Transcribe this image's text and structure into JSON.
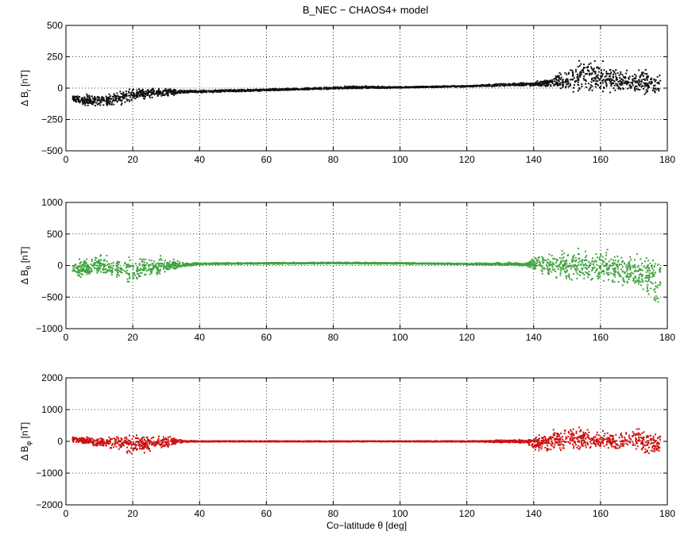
{
  "chart_data": {
    "type": "scatter",
    "title": "B_NEC − CHAOS4+ model",
    "grid": true,
    "panels": [
      {
        "name": "delta-br",
        "ylabel_prefix": "Δ B",
        "ylabel_sub": "r",
        "ylabel_suffix": " [nT]",
        "color": "#111111",
        "xlim": [
          0,
          180
        ],
        "ylim": [
          -500,
          500
        ],
        "xticks": [
          0,
          20,
          40,
          60,
          80,
          100,
          120,
          140,
          160,
          180
        ],
        "yticks": [
          -500,
          -250,
          0,
          250,
          500
        ],
        "xtick_labels": [
          "0",
          "20",
          "40",
          "60",
          "80",
          "100",
          "120",
          "140",
          "160",
          "180"
        ],
        "ytick_labels": [
          "−500",
          "−250",
          "0",
          "250",
          "500"
        ],
        "envelope": [
          [
            2,
            -110,
            -50
          ],
          [
            5,
            -150,
            -40
          ],
          [
            10,
            -180,
            -30
          ],
          [
            15,
            -170,
            -15
          ],
          [
            20,
            -110,
            10
          ],
          [
            25,
            -90,
            15
          ],
          [
            30,
            -80,
            5
          ],
          [
            35,
            -45,
            -10
          ],
          [
            40,
            -40,
            -15
          ],
          [
            60,
            -25,
            -5
          ],
          [
            80,
            -10,
            10
          ],
          [
            85,
            -10,
            20
          ],
          [
            100,
            0,
            12
          ],
          [
            120,
            8,
            22
          ],
          [
            138,
            15,
            50
          ],
          [
            140,
            10,
            55
          ],
          [
            145,
            0,
            90
          ],
          [
            150,
            -40,
            180
          ],
          [
            155,
            -60,
            270
          ],
          [
            160,
            -70,
            250
          ],
          [
            165,
            -70,
            200
          ],
          [
            170,
            -80,
            170
          ],
          [
            175,
            -90,
            170
          ],
          [
            178,
            -80,
            140
          ]
        ]
      },
      {
        "name": "delta-btheta",
        "ylabel_prefix": "Δ B",
        "ylabel_sub": "θ",
        "ylabel_suffix": " [nT]",
        "color": "#3fa33f",
        "xlim": [
          0,
          180
        ],
        "ylim": [
          -1000,
          1000
        ],
        "xticks": [
          0,
          20,
          40,
          60,
          80,
          100,
          120,
          140,
          160,
          180
        ],
        "yticks": [
          -1000,
          -500,
          0,
          500,
          1000
        ],
        "xtick_labels": [
          "0",
          "20",
          "40",
          "60",
          "80",
          "100",
          "120",
          "140",
          "160",
          "180"
        ],
        "ytick_labels": [
          "−1000",
          "−500",
          "0",
          "500",
          "1000"
        ],
        "envelope": [
          [
            2,
            -180,
            60
          ],
          [
            5,
            -220,
            150
          ],
          [
            10,
            -200,
            200
          ],
          [
            15,
            -250,
            150
          ],
          [
            20,
            -350,
            180
          ],
          [
            25,
            -250,
            180
          ],
          [
            30,
            -150,
            150
          ],
          [
            35,
            -40,
            60
          ],
          [
            40,
            10,
            45
          ],
          [
            60,
            20,
            50
          ],
          [
            80,
            25,
            55
          ],
          [
            100,
            20,
            50
          ],
          [
            120,
            10,
            40
          ],
          [
            138,
            -20,
            60
          ],
          [
            140,
            -120,
            200
          ],
          [
            145,
            -250,
            240
          ],
          [
            150,
            -350,
            320
          ],
          [
            155,
            -300,
            340
          ],
          [
            160,
            -350,
            300
          ],
          [
            165,
            -400,
            280
          ],
          [
            170,
            -420,
            250
          ],
          [
            175,
            -600,
            260
          ],
          [
            177,
            -900,
            250
          ],
          [
            178,
            -500,
            200
          ]
        ]
      },
      {
        "name": "delta-bphi",
        "ylabel_prefix": "Δ B",
        "ylabel_sub": "φ",
        "ylabel_suffix": " [nT]",
        "color": "#cc1111",
        "xlim": [
          0,
          180
        ],
        "ylim": [
          -2000,
          2000
        ],
        "xticks": [
          0,
          20,
          40,
          60,
          80,
          100,
          120,
          140,
          160,
          180
        ],
        "yticks": [
          -2000,
          -1000,
          0,
          1000,
          2000
        ],
        "xtick_labels": [
          "0",
          "20",
          "40",
          "60",
          "80",
          "100",
          "120",
          "140",
          "160",
          "180"
        ],
        "ytick_labels": [
          "−2000",
          "−1000",
          "0",
          "1000",
          "2000"
        ],
        "xlabel": "Co−latitude θ [deg]",
        "envelope": [
          [
            2,
            -50,
            200
          ],
          [
            5,
            -100,
            150
          ],
          [
            10,
            -250,
            200
          ],
          [
            15,
            -350,
            250
          ],
          [
            20,
            -500,
            280
          ],
          [
            25,
            -400,
            250
          ],
          [
            30,
            -300,
            250
          ],
          [
            35,
            -50,
            50
          ],
          [
            40,
            -20,
            20
          ],
          [
            60,
            -15,
            15
          ],
          [
            80,
            -15,
            15
          ],
          [
            100,
            -15,
            15
          ],
          [
            120,
            -20,
            20
          ],
          [
            138,
            -80,
            80
          ],
          [
            140,
            -350,
            300
          ],
          [
            145,
            -400,
            400
          ],
          [
            150,
            -400,
            600
          ],
          [
            155,
            -380,
            500
          ],
          [
            160,
            -300,
            400
          ],
          [
            165,
            -350,
            350
          ],
          [
            170,
            -300,
            500
          ],
          [
            175,
            -600,
            450
          ],
          [
            178,
            -500,
            300
          ]
        ]
      }
    ]
  }
}
